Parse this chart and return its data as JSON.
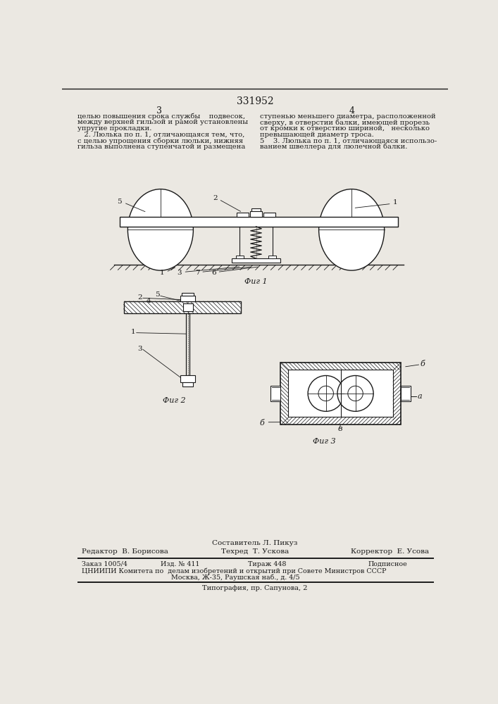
{
  "patent_number": "331952",
  "page_left": "3",
  "page_right": "4",
  "col1_text": [
    "целью повышения срока службы    подвесок,",
    "между верхней гильзой и рамой установлены",
    "упругие прокладки.",
    "   2. Люлька по п. 1, отличающаяся тем, что,",
    "с целью упрощения сборки люльки, нижняя",
    "гильза выполнена ступенчатой и размещена"
  ],
  "col2_text": [
    "ступенью меньшего диаметра, расположенной",
    "сверху, в отверстии балки, имеющей прорезь",
    "от кромки к отверстию шириной,   несколько",
    "превышающей диаметр троса.",
    "5    3. Люлька по п. 1, отличающаяся использо-",
    "ванием швеллера для люлечной балки."
  ],
  "fig1_caption": "Фиг 1",
  "fig2_caption": "Фиг 2",
  "fig3_caption": "Фиг 3",
  "footer_composer": "Составитель Л. Пикуз",
  "footer_editor": "Редактор  В. Борисова",
  "footer_tech": "Техред  Т. Ускова",
  "footer_corrector": "Корректор  Е. Усова",
  "footer_order": "Заказ 1005/4",
  "footer_izd": "Изд. № 411",
  "footer_tirazh": "Тираж 448",
  "footer_podp": "Подписное",
  "footer_cniip": "ЦНИИПИ Комитета по  делам изобретений и открытий при Совете Министров СССР",
  "footer_addr": "Москва, Ж-35, Раушская наб., д. 4/5",
  "footer_typo": "Типография, пр. Сапунова, 2",
  "bg_color": "#ebe8e2",
  "text_color": "#1a1a1a",
  "line_color": "#1a1a1a"
}
